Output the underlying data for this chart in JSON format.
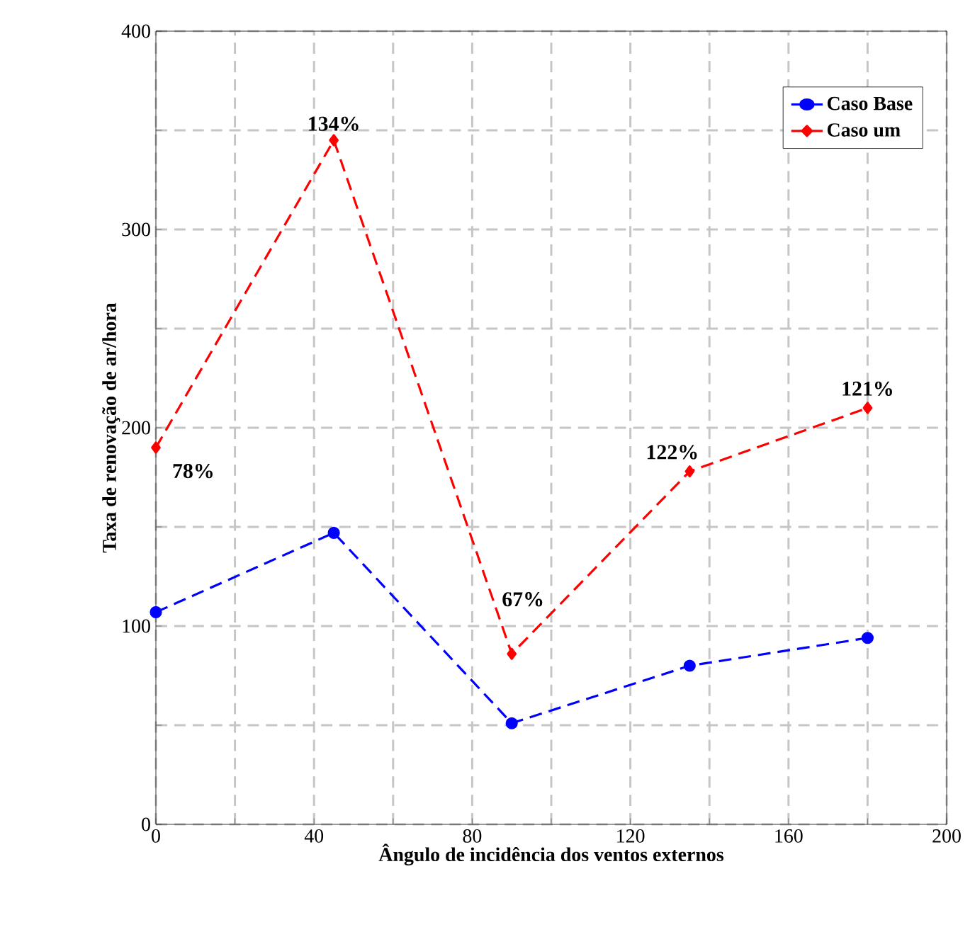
{
  "chart_data": {
    "type": "line",
    "xlabel": "Ângulo de incidência dos ventos externos",
    "ylabel": "Taxa de renovação de ar/hora",
    "x": [
      0,
      45,
      90,
      135,
      180
    ],
    "series": [
      {
        "name": "Caso Base",
        "color": "#0000ff",
        "values": [
          107,
          147,
          51,
          80,
          94
        ],
        "marker": "circle"
      },
      {
        "name": "Caso um",
        "color": "#ff0000",
        "values": [
          190,
          345,
          86,
          178,
          210
        ],
        "marker": "diamond"
      }
    ],
    "annotations": [
      {
        "text": "78%",
        "x": 0,
        "y": 190
      },
      {
        "text": "134%",
        "x": 45,
        "y": 345
      },
      {
        "text": "67%",
        "x": 90,
        "y": 86
      },
      {
        "text": "122%",
        "x": 135,
        "y": 178
      },
      {
        "text": "121%",
        "x": 180,
        "y": 210
      }
    ],
    "xlim": [
      0,
      200
    ],
    "ylim": [
      0,
      400
    ],
    "xticks": [
      0,
      {
        "value": 20,
        "label": null
      },
      40,
      {
        "value": 60,
        "label": null
      },
      80,
      {
        "value": 100,
        "label": null
      },
      120,
      {
        "value": 140,
        "label": null
      },
      160,
      {
        "value": 180,
        "label": null
      },
      200
    ],
    "yticks": [
      0,
      {
        "value": 50,
        "label": null
      },
      100,
      {
        "value": 150,
        "label": null
      },
      200,
      {
        "value": 250,
        "label": null
      },
      300,
      {
        "value": 350,
        "label": null
      },
      400
    ],
    "grid": true,
    "legend": "top right",
    "line_style": "dashed"
  }
}
